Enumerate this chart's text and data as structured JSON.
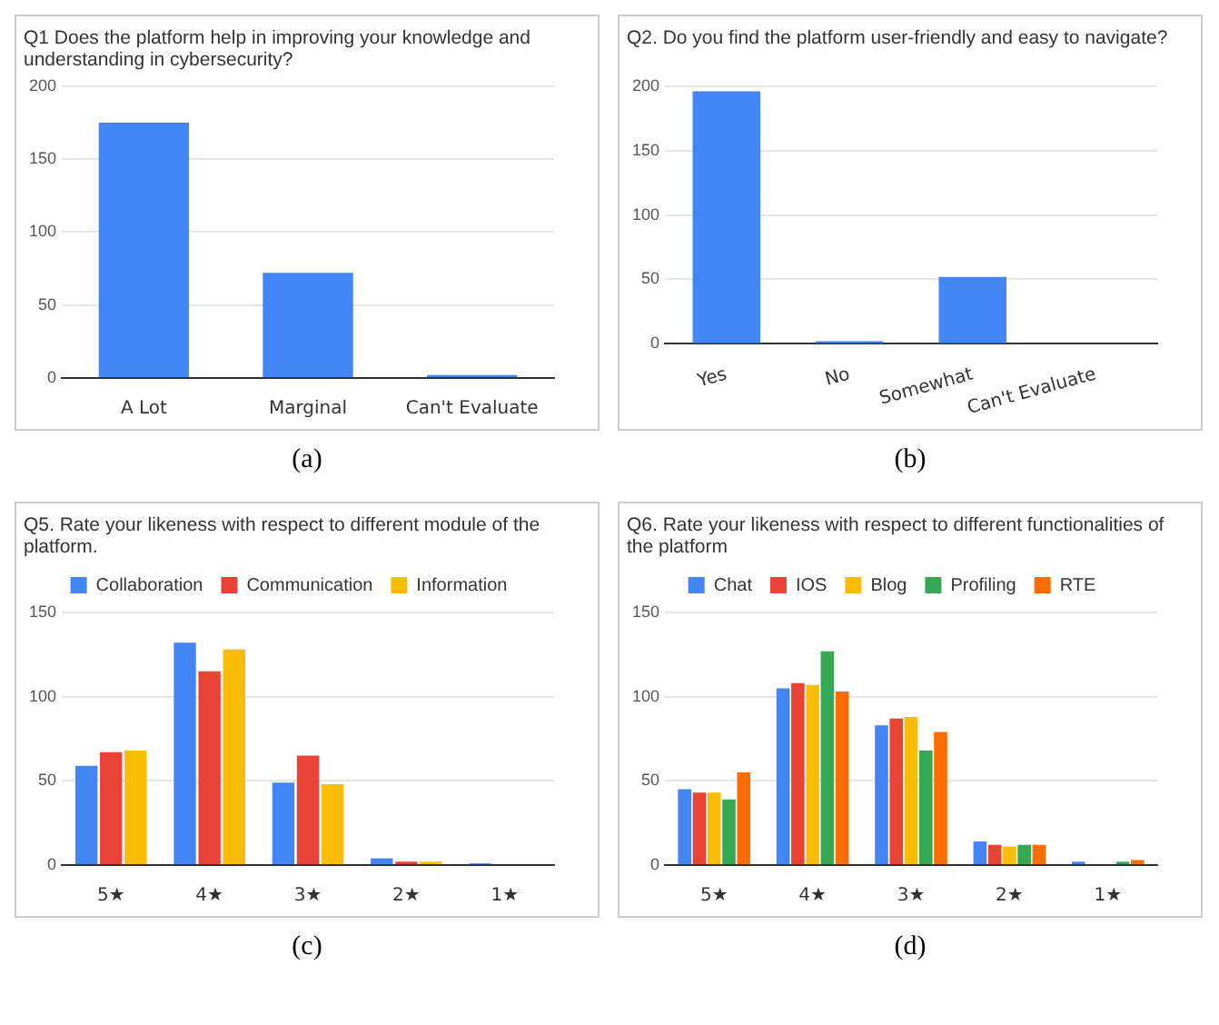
{
  "chart_data": [
    {
      "type": "bar",
      "title": "Q1  Does the platform help in improving your knowledge and understanding in cybersecurity?",
      "categories": [
        "A Lot",
        "Marginal",
        "Can't Evaluate"
      ],
      "values": [
        175,
        72,
        2
      ],
      "color": "#4285f4",
      "ylim": [
        0,
        200
      ],
      "yticks": [
        0,
        50,
        100,
        150,
        200
      ],
      "grid": "y",
      "legend": false,
      "annotations": [
        "(a)"
      ]
    },
    {
      "type": "bar",
      "title": "Q2. Do you find the platform user-friendly and easy to navigate?",
      "categories": [
        "Yes",
        "No",
        "Somewhat",
        "Can't Evaluate"
      ],
      "values": [
        196,
        2,
        52,
        0
      ],
      "color": "#4285f4",
      "ylim": [
        0,
        200
      ],
      "yticks": [
        0,
        50,
        100,
        150,
        200
      ],
      "grid": "y",
      "legend": false,
      "annotations": [
        "(b)"
      ]
    },
    {
      "type": "bar",
      "title": "Q5. Rate your likeness with respect to different module of the platform.",
      "categories": [
        "5★",
        "4★",
        "3★",
        "2★",
        "1★"
      ],
      "series": [
        {
          "name": "Collaboration",
          "color": "#4285f4",
          "values": [
            59,
            132,
            49,
            4,
            1
          ]
        },
        {
          "name": "Communication",
          "color": "#ea4335",
          "values": [
            67,
            115,
            65,
            2,
            0
          ]
        },
        {
          "name": "Information",
          "color": "#fbbc04",
          "values": [
            68,
            128,
            48,
            2,
            0
          ]
        }
      ],
      "ylim": [
        0,
        150
      ],
      "yticks": [
        0,
        50,
        100,
        150
      ],
      "grid": "y",
      "legend": "top",
      "annotations": [
        "(c)"
      ]
    },
    {
      "type": "bar",
      "title": "Q6.  Rate your likeness with respect to different functionalities of the platform",
      "categories": [
        "5★",
        "4★",
        "3★",
        "2★",
        "1★"
      ],
      "series": [
        {
          "name": "Chat",
          "color": "#4285f4",
          "values": [
            45,
            105,
            83,
            14,
            2
          ]
        },
        {
          "name": "IOS",
          "color": "#ea4335",
          "values": [
            43,
            108,
            87,
            12,
            0
          ]
        },
        {
          "name": "Blog",
          "color": "#fbbc04",
          "values": [
            43,
            107,
            88,
            11,
            0
          ]
        },
        {
          "name": "Profiling",
          "color": "#34a853",
          "values": [
            39,
            127,
            68,
            12,
            2
          ]
        },
        {
          "name": "RTE",
          "color": "#ff6d01",
          "values": [
            55,
            103,
            79,
            12,
            3
          ]
        }
      ],
      "ylim": [
        0,
        150
      ],
      "yticks": [
        0,
        50,
        100,
        150
      ],
      "grid": "y",
      "legend": "top",
      "annotations": [
        "(d)"
      ]
    }
  ]
}
